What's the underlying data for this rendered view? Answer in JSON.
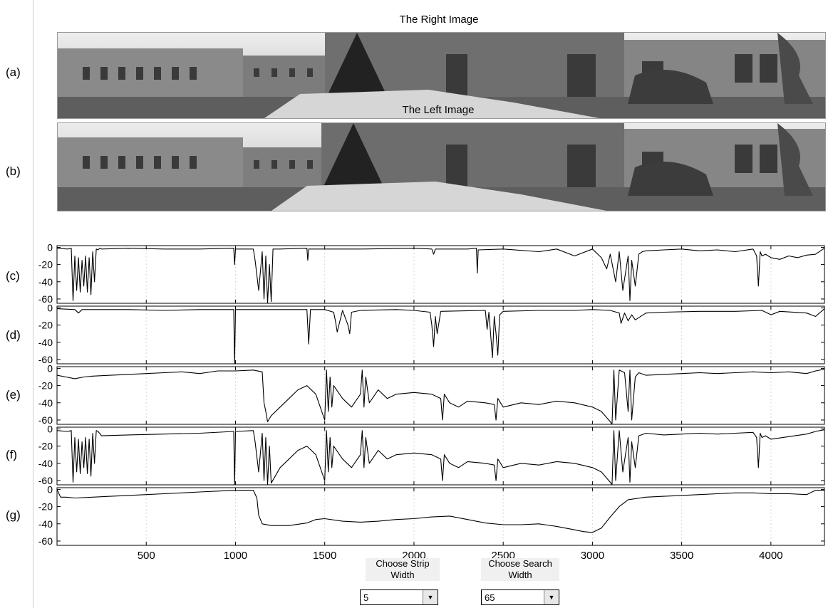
{
  "images": {
    "right_title": "The Right Image",
    "left_title": "The Left Image"
  },
  "row_labels": [
    "(a)",
    "(b)",
    "(c)",
    "(d)",
    "(e)",
    "(f)",
    "(g)"
  ],
  "controls": {
    "strip_label_line1": "Choose Strip",
    "strip_label_line2": "Width",
    "strip_value": "5",
    "search_label_line1": "Choose Search",
    "search_label_line2": "Width",
    "search_value": "65"
  },
  "colors": {
    "line": "#000000",
    "grid": "#d8d8d8",
    "axis": "#000000",
    "image_sky": "#d9d9d9",
    "image_ground": "#6e6e6e"
  },
  "chart_data": [
    {
      "panel": "(c)",
      "type": "line",
      "xlim": [
        0,
        4300
      ],
      "ylim": [
        -65,
        2
      ],
      "yticks": [
        0,
        -20,
        -40,
        -60
      ],
      "series": [
        {
          "x": [
            0,
            60,
            80,
            90,
            100,
            110,
            120,
            130,
            140,
            150,
            160,
            170,
            180,
            190,
            200,
            210,
            220,
            230,
            240,
            250,
            400,
            600,
            800,
            990,
            995,
            1000,
            1100,
            1110,
            1130,
            1150,
            1160,
            1170,
            1180,
            1190,
            1200,
            1210,
            1250,
            1400,
            1405,
            1410,
            1500,
            1700,
            2000,
            2100,
            2110,
            2120,
            2300,
            2350,
            2355,
            2360,
            2500,
            2700,
            2800,
            2900,
            3000,
            3050,
            3080,
            3100,
            3130,
            3150,
            3170,
            3200,
            3210,
            3220,
            3240,
            3260,
            3280,
            3300,
            3400,
            3500,
            3600,
            3700,
            3800,
            3900,
            3920,
            3930,
            3940,
            3950,
            3970,
            4000,
            4050,
            4100,
            4150,
            4200,
            4250,
            4300
          ],
          "y": [
            -1,
            -2,
            -1,
            -62,
            -10,
            -50,
            -12,
            -52,
            -15,
            -45,
            -10,
            -52,
            -12,
            -55,
            -5,
            -40,
            -2,
            -3,
            -1,
            -2,
            -1,
            -2,
            -2,
            -1,
            -20,
            -2,
            -2,
            -15,
            -50,
            -5,
            -60,
            -10,
            -65,
            -20,
            -63,
            -2,
            -2,
            -1,
            -15,
            -2,
            -2,
            -2,
            -1,
            -2,
            -8,
            -2,
            -2,
            -1,
            -30,
            -3,
            -2,
            -5,
            -2,
            -10,
            -2,
            -12,
            -25,
            -8,
            -40,
            -5,
            -50,
            -10,
            -62,
            -15,
            -45,
            -8,
            -5,
            -4,
            -3,
            -2,
            -4,
            -3,
            -5,
            -2,
            -10,
            -45,
            -5,
            -10,
            -8,
            -12,
            -14,
            -10,
            -12,
            -9,
            -8,
            -1
          ]
        }
      ]
    },
    {
      "panel": "(d)",
      "type": "line",
      "xlim": [
        0,
        4300
      ],
      "ylim": [
        -65,
        2
      ],
      "yticks": [
        0,
        -20,
        -40,
        -60
      ],
      "series": [
        {
          "x": [
            0,
            100,
            120,
            140,
            400,
            600,
            800,
            990,
            995,
            1000,
            1200,
            1400,
            1410,
            1420,
            1500,
            1550,
            1560,
            1570,
            1600,
            1630,
            1640,
            1650,
            1700,
            1900,
            2000,
            2090,
            2100,
            2110,
            2120,
            2130,
            2150,
            2400,
            2410,
            2420,
            2440,
            2450,
            2460,
            2470,
            2480,
            2500,
            2700,
            2900,
            3000,
            3100,
            3150,
            3160,
            3180,
            3200,
            3220,
            3240,
            3300,
            3400,
            3600,
            3800,
            3950,
            4000,
            4050,
            4200,
            4250,
            4300
          ],
          "y": [
            -1,
            -2,
            -6,
            -2,
            -2,
            -3,
            -2,
            -2,
            -65,
            -2,
            -2,
            -2,
            -42,
            -2,
            -2,
            -5,
            -15,
            -28,
            -3,
            -20,
            -30,
            -5,
            -3,
            -2,
            -3,
            -5,
            -20,
            -45,
            -10,
            -30,
            -4,
            -3,
            -25,
            -5,
            -58,
            -10,
            -30,
            -55,
            -8,
            -4,
            -3,
            -3,
            -2,
            -3,
            -6,
            -18,
            -6,
            -15,
            -8,
            -14,
            -6,
            -5,
            -4,
            -4,
            -3,
            -8,
            -4,
            -6,
            -10,
            -1
          ]
        }
      ]
    },
    {
      "panel": "(e)",
      "type": "line",
      "xlim": [
        0,
        4300
      ],
      "ylim": [
        -65,
        2
      ],
      "yticks": [
        0,
        -20,
        -40,
        -60
      ],
      "series": [
        {
          "x": [
            0,
            50,
            100,
            150,
            200,
            300,
            400,
            500,
            600,
            700,
            800,
            900,
            1000,
            1100,
            1150,
            1160,
            1170,
            1180,
            1200,
            1250,
            1300,
            1350,
            1400,
            1450,
            1500,
            1510,
            1520,
            1530,
            1540,
            1550,
            1600,
            1650,
            1700,
            1710,
            1720,
            1730,
            1750,
            1800,
            1850,
            1900,
            2000,
            2100,
            2150,
            2160,
            2170,
            2200,
            2250,
            2300,
            2400,
            2450,
            2460,
            2470,
            2500,
            2600,
            2700,
            2800,
            2900,
            3000,
            3050,
            3100,
            3110,
            3120,
            3130,
            3150,
            3180,
            3200,
            3210,
            3220,
            3240,
            3260,
            3300,
            3400,
            3500,
            3600,
            3700,
            3800,
            3900,
            4000,
            4100,
            4200,
            4250,
            4300
          ],
          "y": [
            -8,
            -10,
            -12,
            -10,
            -9,
            -8,
            -7,
            -6,
            -5,
            -4,
            -6,
            -3,
            -3,
            -2,
            -4,
            -40,
            -50,
            -62,
            -55,
            -45,
            -35,
            -25,
            -20,
            -30,
            -60,
            -2,
            -50,
            -10,
            -45,
            -20,
            -35,
            -45,
            -30,
            -2,
            -45,
            -10,
            -40,
            -25,
            -35,
            -30,
            -28,
            -30,
            -35,
            -60,
            -30,
            -40,
            -45,
            -38,
            -40,
            -42,
            -60,
            -35,
            -45,
            -40,
            -42,
            -38,
            -40,
            -45,
            -50,
            -62,
            -65,
            -2,
            -60,
            -2,
            -5,
            -50,
            -2,
            -60,
            -10,
            -5,
            -8,
            -7,
            -6,
            -5,
            -6,
            -5,
            -4,
            -5,
            -4,
            -6,
            -3,
            -1
          ]
        }
      ]
    },
    {
      "panel": "(f)",
      "type": "line",
      "xlim": [
        0,
        4300
      ],
      "ylim": [
        -65,
        2
      ],
      "yticks": [
        0,
        -20,
        -40,
        -60
      ],
      "series": [
        {
          "x": [
            0,
            60,
            80,
            90,
            100,
            110,
            120,
            130,
            140,
            150,
            160,
            170,
            180,
            190,
            200,
            210,
            220,
            230,
            250,
            400,
            600,
            800,
            990,
            995,
            1000,
            1100,
            1110,
            1130,
            1150,
            1160,
            1170,
            1180,
            1190,
            1200,
            1250,
            1300,
            1350,
            1400,
            1450,
            1500,
            1510,
            1520,
            1530,
            1540,
            1550,
            1600,
            1650,
            1700,
            1710,
            1720,
            1730,
            1750,
            1800,
            1850,
            1900,
            2000,
            2100,
            2150,
            2160,
            2170,
            2200,
            2250,
            2300,
            2400,
            2450,
            2460,
            2470,
            2500,
            2600,
            2700,
            2800,
            2900,
            3000,
            3050,
            3100,
            3110,
            3120,
            3130,
            3150,
            3170,
            3200,
            3210,
            3220,
            3240,
            3260,
            3300,
            3400,
            3500,
            3600,
            3700,
            3800,
            3900,
            3920,
            3930,
            3940,
            3950,
            3970,
            4000,
            4100,
            4200,
            4250,
            4300
          ],
          "y": [
            -2,
            -3,
            -2,
            -62,
            -10,
            -50,
            -12,
            -52,
            -15,
            -45,
            -10,
            -52,
            -12,
            -55,
            -5,
            -40,
            -2,
            -3,
            -8,
            -7,
            -6,
            -5,
            -3,
            -65,
            -3,
            -2,
            -15,
            -50,
            -5,
            -60,
            -10,
            -65,
            -20,
            -63,
            -45,
            -35,
            -25,
            -20,
            -30,
            -60,
            -2,
            -50,
            -10,
            -45,
            -20,
            -35,
            -45,
            -30,
            -2,
            -45,
            -10,
            -40,
            -25,
            -35,
            -30,
            -28,
            -30,
            -35,
            -60,
            -30,
            -40,
            -45,
            -38,
            -40,
            -42,
            -60,
            -35,
            -45,
            -40,
            -42,
            -38,
            -40,
            -45,
            -50,
            -62,
            -65,
            -2,
            -60,
            -2,
            -50,
            -10,
            -62,
            -15,
            -45,
            -8,
            -5,
            -7,
            -6,
            -5,
            -6,
            -5,
            -4,
            -10,
            -45,
            -5,
            -10,
            -8,
            -12,
            -9,
            -6,
            -3,
            -1
          ]
        }
      ]
    },
    {
      "panel": "(g)",
      "type": "line",
      "xlim": [
        0,
        4300
      ],
      "ylim": [
        -65,
        2
      ],
      "yticks": [
        0,
        -20,
        -40,
        -60
      ],
      "xticks": [
        500,
        1000,
        1500,
        2000,
        2500,
        3000,
        3500,
        4000
      ],
      "series": [
        {
          "x": [
            0,
            20,
            50,
            100,
            200,
            300,
            400,
            500,
            600,
            700,
            800,
            900,
            1000,
            1050,
            1100,
            1120,
            1130,
            1150,
            1200,
            1300,
            1400,
            1450,
            1500,
            1600,
            1700,
            1800,
            1900,
            2000,
            2100,
            2200,
            2300,
            2400,
            2500,
            2600,
            2700,
            2800,
            2900,
            2950,
            3000,
            3050,
            3100,
            3150,
            3200,
            3300,
            3400,
            3500,
            3600,
            3700,
            3800,
            3900,
            4000,
            4100,
            4200,
            4250,
            4300
          ],
          "y": [
            0,
            -9,
            -9,
            -10,
            -9,
            -8,
            -7,
            -6,
            -5,
            -4,
            -3,
            -2,
            -1,
            -1,
            -1,
            -10,
            -30,
            -40,
            -42,
            -42,
            -39,
            -35,
            -34,
            -37,
            -38,
            -37,
            -35,
            -34,
            -32,
            -31,
            -35,
            -39,
            -41,
            -41,
            -40,
            -43,
            -47,
            -49,
            -50,
            -45,
            -32,
            -20,
            -12,
            -9,
            -8,
            -7,
            -6,
            -5,
            -4,
            -4,
            -5,
            -5,
            -6,
            -1,
            -1
          ]
        }
      ]
    }
  ]
}
